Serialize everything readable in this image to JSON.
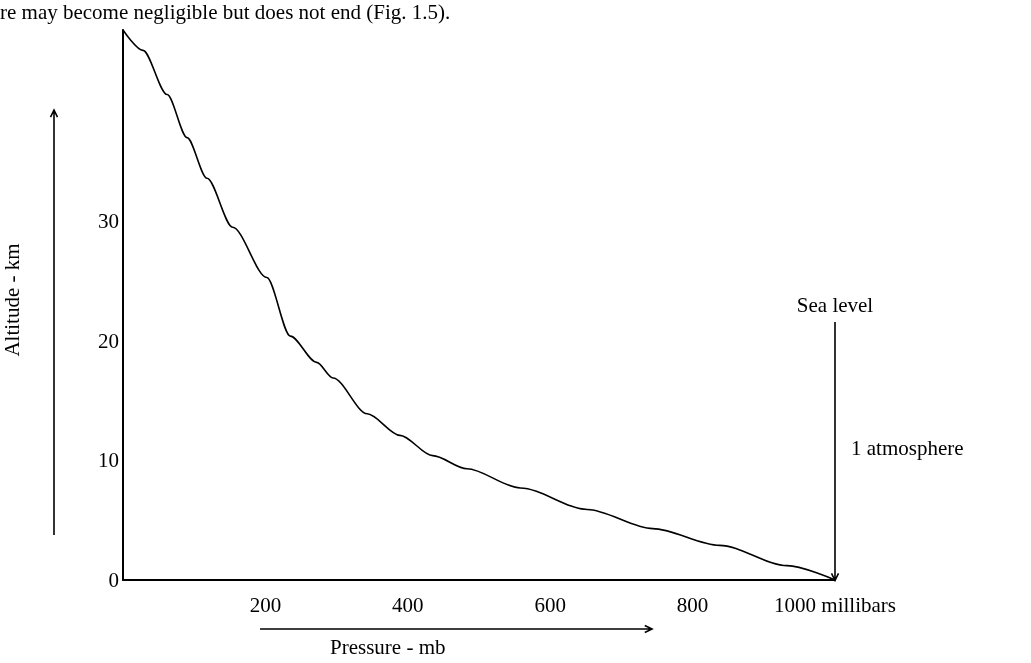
{
  "chart_data": {
    "type": "line",
    "xlabel": "Pressure - mb",
    "ylabel": "Altitude - km",
    "annotations": [
      "re may become negligible but does not end (Fig. 1.5).",
      "1 atmosphere"
    ],
    "ref_lines": [
      {
        "axis": "x",
        "value": 1000,
        "label": "Sea level"
      }
    ],
    "xlim": [
      0,
      1000
    ],
    "xticks": [
      200,
      400,
      600,
      800,
      {
        "value": 1000,
        "label": "1000 millibars"
      }
    ],
    "ylim": [
      0,
      46
    ],
    "yticks": [
      0,
      10,
      20,
      30
    ],
    "grid": false,
    "marker": "none",
    "line_style": "solid",
    "series": [
      {
        "color": "#000000",
        "x": [
          0,
          28,
          62,
          90,
          118,
          154,
          202,
          235,
          272,
          295,
          343,
          389,
          435,
          483,
          558,
          652,
          744,
          838,
          933,
          1000
        ],
        "values": [
          46,
          44.3,
          40.6,
          37.0,
          33.6,
          29.5,
          25.3,
          20.4,
          18.2,
          16.9,
          13.9,
          12.1,
          10.4,
          9.3,
          7.7,
          5.9,
          4.3,
          2.9,
          1.2,
          0
        ]
      }
    ]
  }
}
